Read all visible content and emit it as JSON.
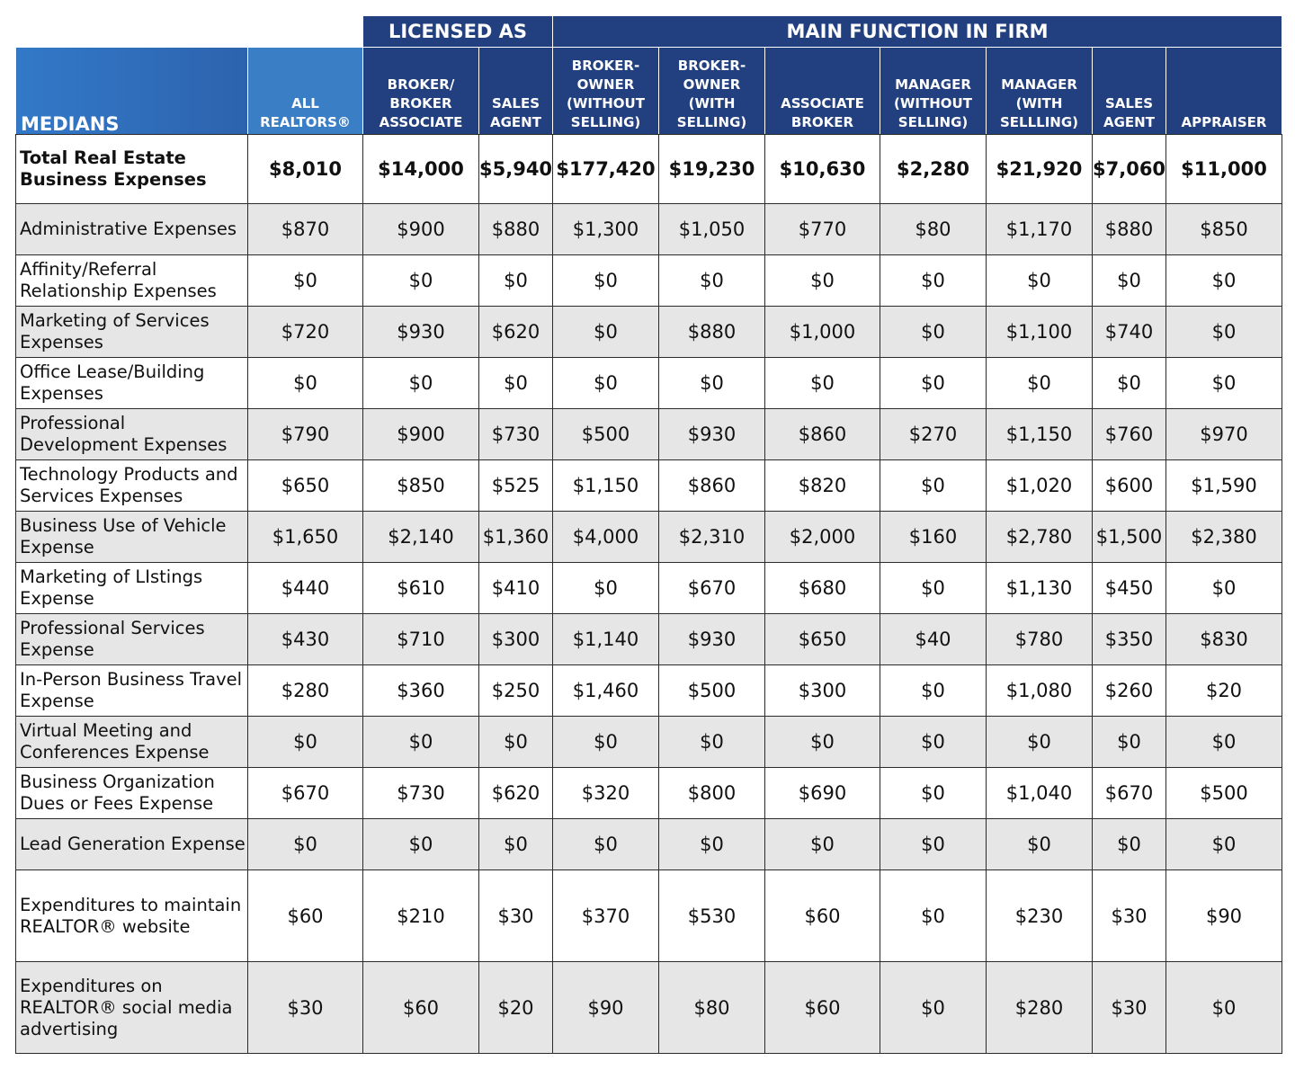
{
  "table": {
    "group_headers": {
      "licensed_as": "LICENSED AS",
      "main_function": "MAIN FUNCTION IN FIRM"
    },
    "row_header_label": "MEDIANS",
    "columns": [
      "ALL REALTORS®",
      "BROKER/ BROKER ASSOCIATE",
      "SALES AGENT",
      "BROKER- OWNER (WITHOUT SELLING)",
      "BROKER- OWNER (WITH SELLING)",
      "ASSOCIATE BROKER",
      "MANAGER (WITHOUT SELLING)",
      "MANAGER (WITH SELLLING)",
      "SALES AGENT",
      "APPRAISER"
    ],
    "rows": [
      {
        "label": "Total Real Estate Business Expenses",
        "values": [
          "$8,010",
          "$14,000",
          "$5,940",
          "$177,420",
          "$19,230",
          "$10,630",
          "$2,280",
          "$21,920",
          "$7,060",
          "$11,000"
        ]
      },
      {
        "label": "Administrative Expenses",
        "values": [
          "$870",
          "$900",
          "$880",
          "$1,300",
          "$1,050",
          "$770",
          "$80",
          "$1,170",
          "$880",
          "$850"
        ]
      },
      {
        "label": "Affinity/Referral Relationship Expenses",
        "values": [
          "$0",
          "$0",
          "$0",
          "$0",
          "$0",
          "$0",
          "$0",
          "$0",
          "$0",
          "$0"
        ]
      },
      {
        "label": "Marketing of Services Expenses",
        "values": [
          "$720",
          "$930",
          "$620",
          "$0",
          "$880",
          "$1,000",
          "$0",
          "$1,100",
          "$740",
          "$0"
        ]
      },
      {
        "label": "Office Lease/Building Expenses",
        "values": [
          "$0",
          "$0",
          "$0",
          "$0",
          "$0",
          "$0",
          "$0",
          "$0",
          "$0",
          "$0"
        ]
      },
      {
        "label": "Professional Development  Expenses",
        "values": [
          "$790",
          "$900",
          "$730",
          "$500",
          "$930",
          "$860",
          "$270",
          "$1,150",
          "$760",
          "$970"
        ]
      },
      {
        "label": "Technology Products and Services Expenses",
        "values": [
          "$650",
          "$850",
          "$525",
          "$1,150",
          "$860",
          "$820",
          "$0",
          "$1,020",
          "$600",
          "$1,590"
        ]
      },
      {
        "label": "Business Use of Vehicle Expense",
        "values": [
          "$1,650",
          "$2,140",
          "$1,360",
          "$4,000",
          "$2,310",
          "$2,000",
          "$160",
          "$2,780",
          "$1,500",
          "$2,380"
        ]
      },
      {
        "label": "Marketing of LIstings Expense",
        "values": [
          "$440",
          "$610",
          "$410",
          "$0",
          "$670",
          "$680",
          "$0",
          "$1,130",
          "$450",
          "$0"
        ]
      },
      {
        "label": "Professional Services Expense",
        "values": [
          "$430",
          "$710",
          "$300",
          "$1,140",
          "$930",
          "$650",
          "$40",
          "$780",
          "$350",
          "$830"
        ]
      },
      {
        "label": "In-Person Business Travel Expense",
        "values": [
          "$280",
          "$360",
          "$250",
          "$1,460",
          "$500",
          "$300",
          "$0",
          "$1,080",
          "$260",
          "$20"
        ]
      },
      {
        "label": "Virtual Meeting and Conferences Expense",
        "values": [
          "$0",
          "$0",
          "$0",
          "$0",
          "$0",
          "$0",
          "$0",
          "$0",
          "$0",
          "$0"
        ]
      },
      {
        "label": "Business Organization Dues or Fees Expense",
        "values": [
          "$670",
          "$730",
          "$620",
          "$320",
          "$800",
          "$690",
          "$0",
          "$1,040",
          "$670",
          "$500"
        ]
      },
      {
        "label": "Lead Generation Expense",
        "values": [
          "$0",
          "$0",
          "$0",
          "$0",
          "$0",
          "$0",
          "$0",
          "$0",
          "$0",
          "$0"
        ]
      },
      {
        "label": "Expenditures to maintain REALTOR® website",
        "values": [
          "$60",
          "$210",
          "$30",
          "$370",
          "$530",
          "$60",
          "$0",
          "$230",
          "$30",
          "$90"
        ]
      },
      {
        "label": "Expenditures on REALTOR® social media advertising",
        "values": [
          "$30",
          "$60",
          "$20",
          "$90",
          "$80",
          "$60",
          "$0",
          "$280",
          "$30",
          "$0"
        ]
      }
    ]
  }
}
